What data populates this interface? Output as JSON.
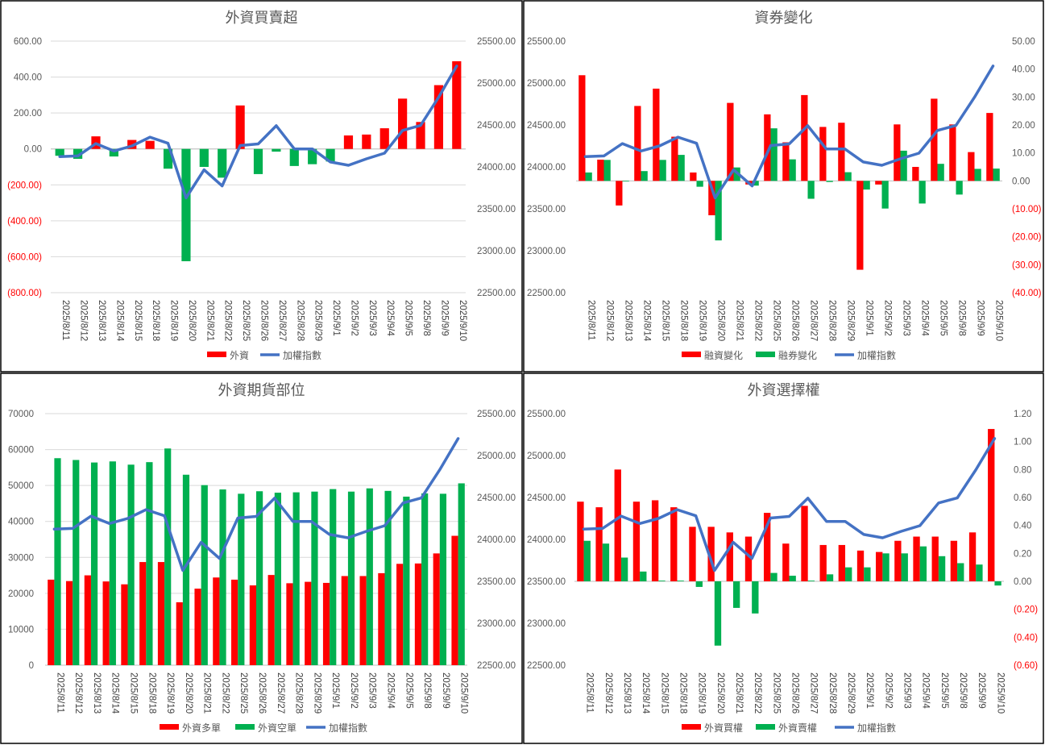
{
  "colors": {
    "red": "#ff0000",
    "green": "#00b050",
    "blue": "#4472c4",
    "negative_tick": "#ff0000"
  },
  "chart_data": [
    {
      "type": "bar",
      "title": "外資買賣超",
      "categories": [
        "2025/8/11",
        "2025/8/12",
        "2025/8/13",
        "2025/8/14",
        "2025/8/15",
        "2025/8/18",
        "2025/8/19",
        "2025/8/20",
        "2025/8/21",
        "2025/8/22",
        "2025/8/25",
        "2025/8/26",
        "2025/8/27",
        "2025/8/28",
        "2025/8/29",
        "2025/9/1",
        "2025/9/2",
        "2025/9/3",
        "2025/9/4",
        "2025/9/5",
        "2025/9/8",
        "2025/9/9",
        "2025/9/10"
      ],
      "series": [
        {
          "name": "外資",
          "kind": "bar",
          "axis": "left",
          "color": "signed",
          "values": [
            -38,
            -55,
            70,
            -42,
            50,
            45,
            -110,
            -625,
            -100,
            -160,
            242,
            -140,
            -15,
            -95,
            -85,
            -70,
            75,
            80,
            115,
            280,
            150,
            355,
            488
          ]
        },
        {
          "name": "加權指數",
          "kind": "line",
          "axis": "right",
          "color": "#4472c4",
          "values": [
            24123,
            24131,
            24278,
            24189,
            24250,
            24355,
            24282,
            23630,
            23965,
            23773,
            24255,
            24274,
            24491,
            24214,
            24214,
            24059,
            24019,
            24096,
            24163,
            24435,
            24494,
            24831,
            25203
          ]
        }
      ],
      "y_left": {
        "min": -800,
        "max": 600,
        "step": 200,
        "ticks": [
          "(800.00)",
          "(600.00)",
          "(400.00)",
          "(200.00)",
          "0.00",
          "200.00",
          "400.00",
          "600.00"
        ]
      },
      "y_right": {
        "min": 22500,
        "max": 25500,
        "step": 500,
        "ticks": [
          "22500.00",
          "23000.00",
          "23500.00",
          "24000.00",
          "24500.00",
          "25000.00",
          "25500.00"
        ]
      },
      "grid": true,
      "legend_position": "bottom"
    },
    {
      "type": "bar",
      "title": "資券變化",
      "categories": [
        "2025/8/11",
        "2025/8/12",
        "2025/8/13",
        "2025/8/14",
        "2025/8/15",
        "2025/8/18",
        "2025/8/19",
        "2025/8/20",
        "2025/8/21",
        "2025/8/22",
        "2025/8/25",
        "2025/8/26",
        "2025/8/27",
        "2025/8/28",
        "2025/8/29",
        "2025/9/1",
        "2025/9/2",
        "2025/9/3",
        "2025/9/4",
        "2025/9/5",
        "2025/9/8",
        "2025/9/9",
        "2025/9/10"
      ],
      "series": [
        {
          "name": "融資變化",
          "kind": "bar",
          "axis": "right",
          "color": "#ff0000",
          "values": [
            37.8,
            7.6,
            -8.8,
            26.8,
            33.0,
            15.8,
            3.0,
            -12.3,
            27.9,
            -1.3,
            23.8,
            13.8,
            30.7,
            19.3,
            20.8,
            -31.8,
            -1.3,
            20.2,
            5.0,
            29.4,
            20.2,
            10.3,
            24.3
          ]
        },
        {
          "name": "融券變化",
          "kind": "bar",
          "axis": "right",
          "color": "#00b050",
          "values": [
            3.0,
            7.5,
            0,
            3.5,
            7.5,
            9.3,
            -2.1,
            -21.3,
            4.8,
            -1.7,
            18.8,
            7.7,
            -6.4,
            -0.4,
            3.1,
            -3.1,
            -9.9,
            10.8,
            -8.1,
            6.1,
            -4.9,
            4.3,
            4.4
          ]
        },
        {
          "name": "加權指數",
          "kind": "line",
          "axis": "left",
          "color": "#4472c4",
          "values": [
            24123,
            24131,
            24278,
            24189,
            24250,
            24355,
            24282,
            23630,
            23965,
            23773,
            24255,
            24274,
            24491,
            24214,
            24214,
            24059,
            24019,
            24096,
            24163,
            24435,
            24494,
            24831,
            25203
          ]
        }
      ],
      "y_left": {
        "min": 22500,
        "max": 25500,
        "step": 500,
        "ticks": [
          "22500.00",
          "23000.00",
          "23500.00",
          "24000.00",
          "24500.00",
          "25000.00",
          "25500.00"
        ]
      },
      "y_right": {
        "min": -40,
        "max": 50,
        "step": 10,
        "ticks": [
          "(40.00)",
          "(30.00)",
          "(20.00)",
          "(10.00)",
          "0.00",
          "10.00",
          "20.00",
          "30.00",
          "40.00",
          "50.00"
        ]
      },
      "grid": false,
      "legend_position": "bottom"
    },
    {
      "type": "bar",
      "title": "外資期貨部位",
      "categories": [
        "2025/8/11",
        "2025/8/12",
        "2025/8/13",
        "2025/8/14",
        "2025/8/15",
        "2025/8/18",
        "2025/8/19",
        "2025/8/20",
        "2025/8/21",
        "2025/8/22",
        "2025/8/25",
        "2025/8/26",
        "2025/8/27",
        "2025/8/28",
        "2025/8/29",
        "2025/9/1",
        "2025/9/2",
        "2025/9/3",
        "2025/9/4",
        "2025/9/5",
        "2025/9/8",
        "2025/9/9",
        "2025/9/10"
      ],
      "series": [
        {
          "name": "外資多單",
          "kind": "bar",
          "axis": "left",
          "color": "#ff0000",
          "values": [
            23800,
            23400,
            25000,
            23300,
            22500,
            28700,
            28700,
            17500,
            21300,
            24400,
            23800,
            22200,
            25100,
            22800,
            23200,
            22900,
            24800,
            24800,
            25600,
            28200,
            28300,
            31100,
            36000
          ]
        },
        {
          "name": "外資空單",
          "kind": "bar",
          "axis": "left",
          "color": "#00b050",
          "values": [
            57600,
            57100,
            56400,
            56700,
            55800,
            56500,
            60300,
            53000,
            50100,
            48900,
            47700,
            48400,
            48000,
            48100,
            48300,
            49000,
            48300,
            49200,
            48500,
            46900,
            47800,
            47700,
            50600
          ]
        },
        {
          "name": "加權指數",
          "kind": "line",
          "axis": "right",
          "color": "#4472c4",
          "values": [
            24123,
            24131,
            24278,
            24189,
            24250,
            24355,
            24282,
            23630,
            23965,
            23773,
            24255,
            24274,
            24491,
            24214,
            24214,
            24059,
            24019,
            24096,
            24163,
            24435,
            24494,
            24831,
            25203
          ]
        }
      ],
      "y_left": {
        "min": 0,
        "max": 70000,
        "step": 10000,
        "ticks": [
          "0",
          "10000",
          "20000",
          "30000",
          "40000",
          "50000",
          "60000",
          "70000"
        ]
      },
      "y_right": {
        "min": 22500,
        "max": 25500,
        "step": 500,
        "ticks": [
          "22500.00",
          "23000.00",
          "23500.00",
          "24000.00",
          "24500.00",
          "25000.00",
          "25500.00"
        ]
      },
      "grid": true,
      "legend_position": "bottom"
    },
    {
      "type": "bar",
      "title": "外資選擇權",
      "categories": [
        "2025/8/11",
        "2025/8/12",
        "2025/8/13",
        "2025/8/14",
        "2025/8/15",
        "2025/8/18",
        "2025/8/19",
        "2025/8/20",
        "2025/8/21",
        "2025/8/22",
        "2025/8/25",
        "2025/8/26",
        "2025/8/27",
        "2025/8/28",
        "2025/8/29",
        "2025/9/1",
        "2025/9/2",
        "2025/9/3",
        "2025/9/4",
        "2025/9/5",
        "2025/9/8",
        "2025/9/9",
        "2025/9/10"
      ],
      "series": [
        {
          "name": "外資買權",
          "kind": "bar",
          "axis": "right",
          "color": "#ff0000",
          "values": [
            0.57,
            0.53,
            0.8,
            0.57,
            0.58,
            0.53,
            0.39,
            0.39,
            0.35,
            0.32,
            0.49,
            0.27,
            0.54,
            0.26,
            0.26,
            0.22,
            0.21,
            0.29,
            0.32,
            0.32,
            0.29,
            0.35,
            1.09
          ]
        },
        {
          "name": "外資賣權",
          "kind": "bar",
          "axis": "right",
          "color": "#00b050",
          "values": [
            0.29,
            0.27,
            0.17,
            0.07,
            0.005,
            0.005,
            -0.04,
            -0.46,
            -0.19,
            -0.23,
            0.06,
            0.04,
            0.005,
            0.05,
            0.1,
            0.1,
            0.2,
            0.2,
            0.25,
            0.18,
            0.13,
            0.12,
            -0.03
          ]
        },
        {
          "name": "加權指數",
          "kind": "line",
          "axis": "left",
          "color": "#4472c4",
          "values": [
            24123,
            24131,
            24278,
            24189,
            24250,
            24355,
            24282,
            23630,
            23965,
            23773,
            24255,
            24274,
            24491,
            24214,
            24214,
            24059,
            24019,
            24096,
            24163,
            24435,
            24494,
            24831,
            25203
          ]
        }
      ],
      "y_left": {
        "min": 22500,
        "max": 25500,
        "step": 500,
        "ticks": [
          "22500.00",
          "23000.00",
          "23500.00",
          "24000.00",
          "24500.00",
          "25000.00",
          "25500.00"
        ]
      },
      "y_right": {
        "min": -0.6,
        "max": 1.2,
        "step": 0.2,
        "ticks": [
          "(0.60)",
          "(0.40)",
          "(0.20)",
          "0.00",
          "0.20",
          "0.40",
          "0.60",
          "0.80",
          "1.00",
          "1.20"
        ]
      },
      "grid": false,
      "legend_position": "bottom"
    }
  ]
}
